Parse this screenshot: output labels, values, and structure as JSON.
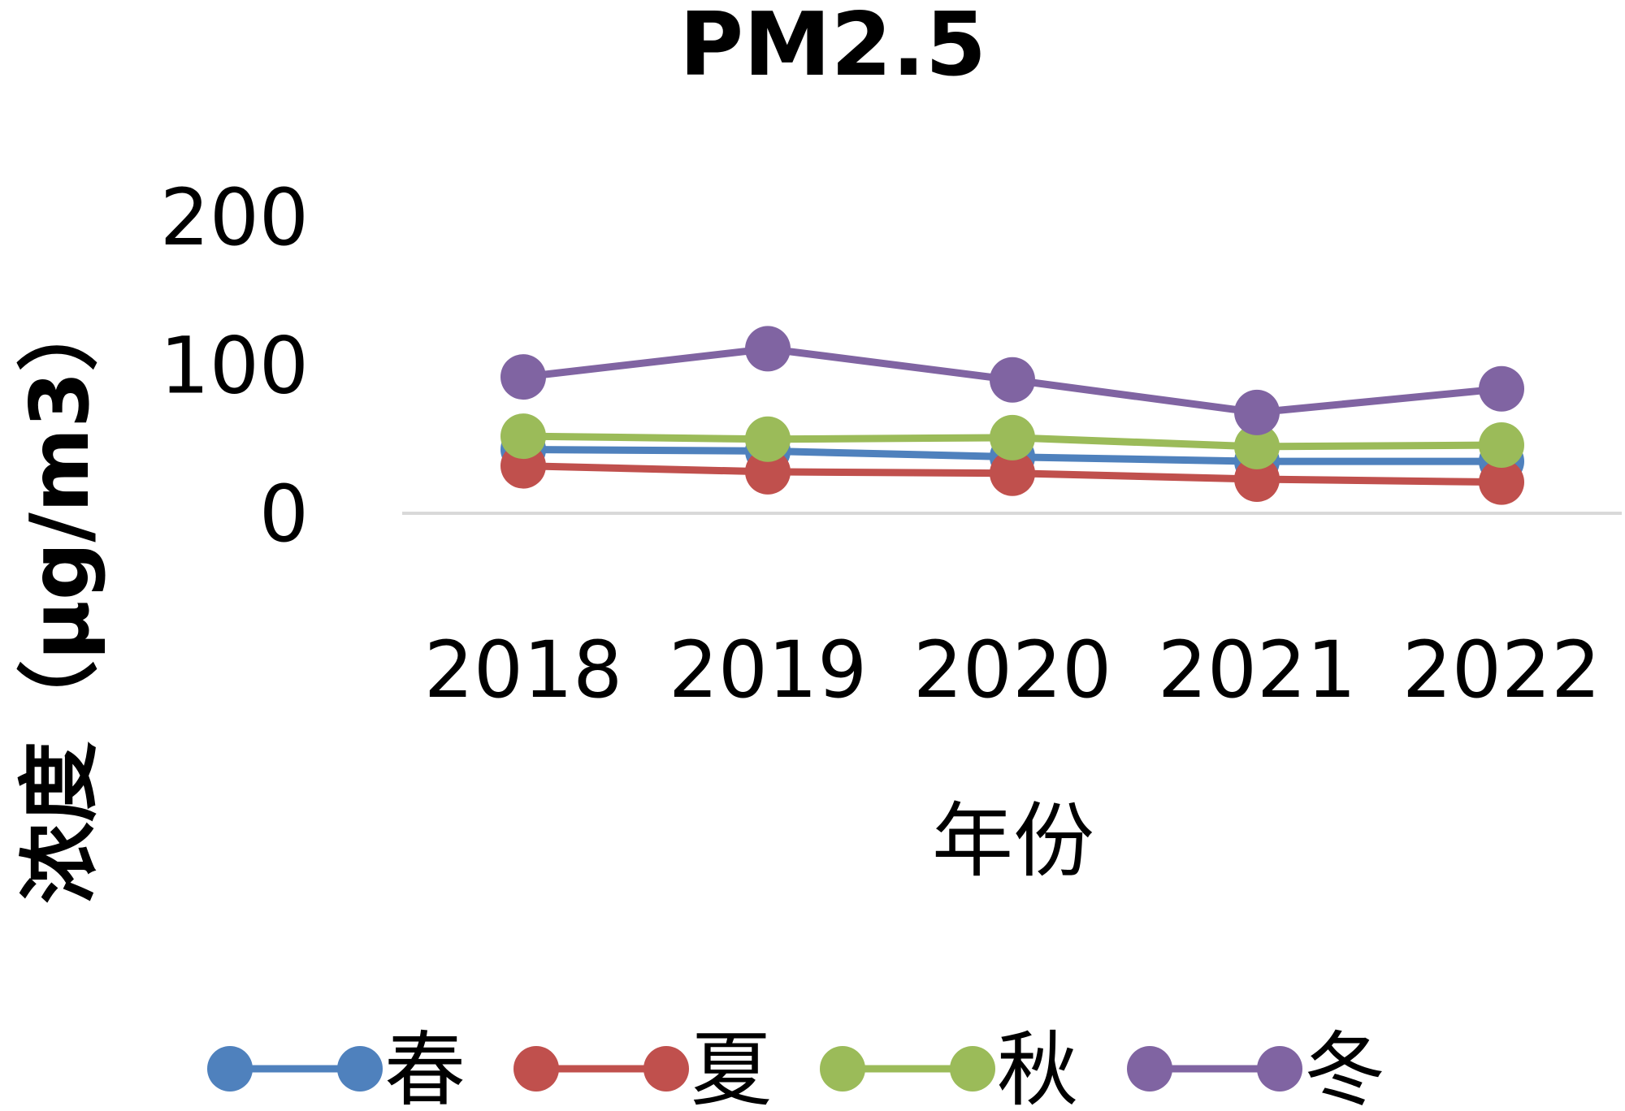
{
  "chart_data": {
    "type": "line",
    "title": "PM2.5",
    "xlabel": "年份",
    "ylabel": "浓度（μg/m3）",
    "categories": [
      "2018",
      "2019",
      "2020",
      "2021",
      "2022"
    ],
    "ylim": [
      0,
      200
    ],
    "yticks": [
      "0",
      "100",
      "200"
    ],
    "grid": false,
    "legend_position": "bottom",
    "series": [
      {
        "name": "春",
        "color": "#4F81BD",
        "values": [
          43,
          42,
          38,
          35,
          35
        ]
      },
      {
        "name": "夏",
        "color": "#C0504D",
        "values": [
          32,
          28,
          27,
          23,
          21
        ]
      },
      {
        "name": "秋",
        "color": "#9BBB59",
        "values": [
          52,
          50,
          51,
          45,
          46
        ]
      },
      {
        "name": "冬",
        "color": "#8064A2",
        "values": [
          92,
          111,
          90,
          68,
          84
        ]
      }
    ]
  }
}
